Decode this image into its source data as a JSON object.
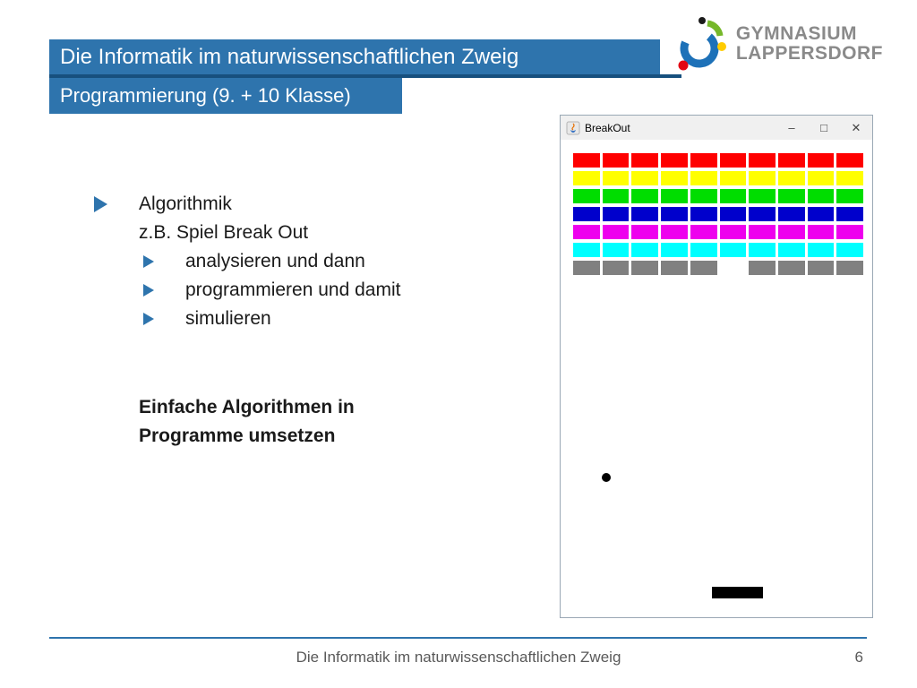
{
  "slide": {
    "title": "Die Informatik im naturwissenschaftlichen Zweig",
    "subtitle": "Programmierung (9. + 10 Klasse)",
    "footer_text": "Die Informatik im naturwissenschaftlichen Zweig",
    "page_number": "6"
  },
  "logo": {
    "line1": "GYMNASIUM",
    "line2": "LAPPERSDORF"
  },
  "content": {
    "bullet1": "Algorithmik",
    "line2": "z.B. Spiel Break Out",
    "subbullets": [
      "analysieren und dann",
      "programmieren und damit",
      "simulieren"
    ],
    "bold_lines": [
      "Einfache Algorithmen in",
      "Programme umsetzen"
    ]
  },
  "breakout": {
    "window_title": "BreakOut",
    "controls": {
      "minimize": "–",
      "maximize": "□",
      "close": "✕"
    },
    "columns": 10,
    "rows": [
      {
        "color": "#ff0000",
        "bricks": [
          1,
          1,
          1,
          1,
          1,
          1,
          1,
          1,
          1,
          1
        ]
      },
      {
        "color": "#ffff00",
        "bricks": [
          1,
          1,
          1,
          1,
          1,
          1,
          1,
          1,
          1,
          1
        ]
      },
      {
        "color": "#00dd00",
        "bricks": [
          1,
          1,
          1,
          1,
          1,
          1,
          1,
          1,
          1,
          1
        ]
      },
      {
        "color": "#0000cc",
        "bricks": [
          1,
          1,
          1,
          1,
          1,
          1,
          1,
          1,
          1,
          1
        ]
      },
      {
        "color": "#ee00ee",
        "bricks": [
          1,
          1,
          1,
          1,
          1,
          1,
          1,
          1,
          1,
          1
        ]
      },
      {
        "color": "#00ffff",
        "bricks": [
          1,
          1,
          1,
          1,
          1,
          1,
          1,
          1,
          1,
          1
        ]
      },
      {
        "color": "#808080",
        "bricks": [
          1,
          1,
          1,
          1,
          1,
          0,
          1,
          1,
          1,
          1
        ]
      }
    ],
    "ball_color": "#000000",
    "paddle_color": "#000000"
  },
  "colors": {
    "accent_blue": "#2e74ad",
    "accent_dark_blue": "#17507e",
    "footer_text_gray": "#595959",
    "logo_text_gray": "#8a8a8a"
  }
}
